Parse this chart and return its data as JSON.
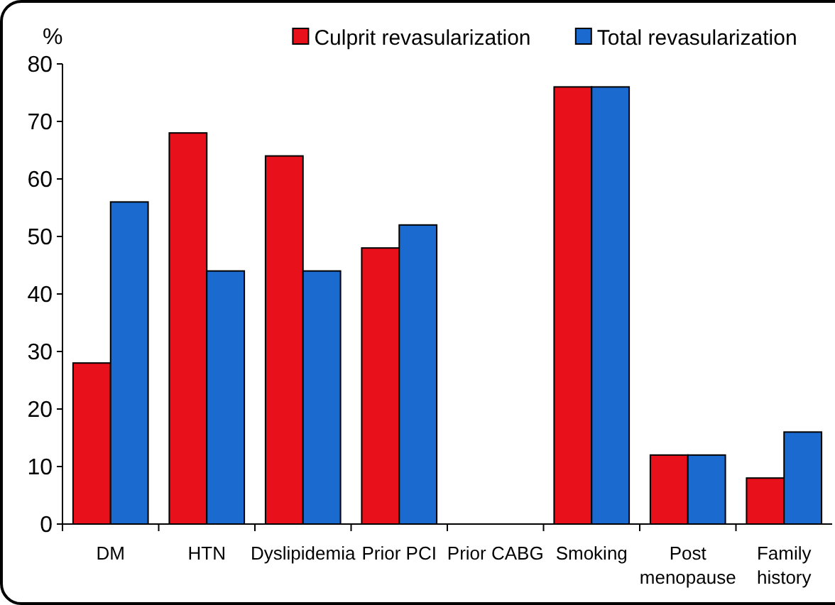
{
  "chart_data": {
    "type": "bar",
    "ylabel": "%",
    "categories": [
      "DM",
      "HTN",
      "Dyslipidemia",
      "Prior PCI",
      "Prior CABG",
      "Smoking",
      "Post menopause",
      "Family history"
    ],
    "series": [
      {
        "name": "Culprit revasularization",
        "color": "#e8101a",
        "values": [
          28,
          68,
          64,
          48,
          0,
          76,
          12,
          8
        ]
      },
      {
        "name": "Total revasularization",
        "color": "#1a6ad0",
        "values": [
          56,
          44,
          44,
          52,
          0,
          76,
          12,
          16
        ]
      }
    ],
    "ylim": [
      0,
      80
    ],
    "yticks": [
      0,
      10,
      20,
      30,
      40,
      50,
      60,
      70,
      80
    ],
    "grid": false,
    "legend": "top right"
  }
}
